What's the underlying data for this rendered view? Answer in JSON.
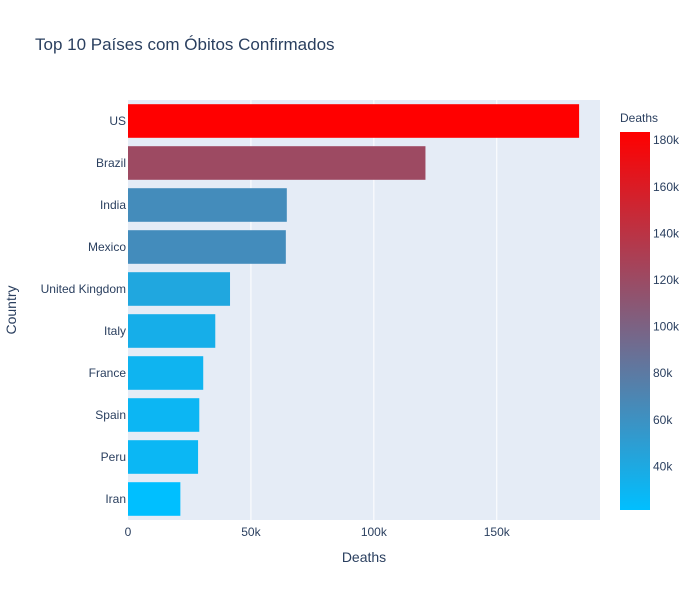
{
  "chart_data": {
    "type": "bar",
    "orientation": "horizontal",
    "title": "Top 10 Países com Óbitos Confirmados",
    "xlabel": "Deaths",
    "ylabel": "Country",
    "categories": [
      "US",
      "Brazil",
      "India",
      "Mexico",
      "United Kingdom",
      "Italy",
      "France",
      "Spain",
      "Peru",
      "Iran"
    ],
    "values": [
      183500,
      121000,
      64600,
      64200,
      41500,
      35500,
      30600,
      29000,
      28500,
      21300
    ],
    "xlim": [
      0,
      192000
    ],
    "x_ticks": [
      0,
      50000,
      100000,
      150000
    ],
    "x_tick_labels": [
      "0",
      "50k",
      "100k",
      "150k"
    ],
    "grid": true,
    "colorbar": {
      "title": "Deaths",
      "range": [
        21300,
        183500
      ],
      "ticks": [
        40000,
        60000,
        80000,
        100000,
        120000,
        140000,
        160000,
        180000
      ],
      "tick_labels": [
        "40k",
        "60k",
        "80k",
        "100k",
        "120k",
        "140k",
        "160k",
        "180k"
      ],
      "colors": [
        "#00bfff",
        "#ff0000"
      ],
      "placement": "right"
    },
    "colors": {
      "plot_background": "#e5ecf6",
      "text": "#2a3f5f",
      "grid": "#ffffff"
    }
  }
}
